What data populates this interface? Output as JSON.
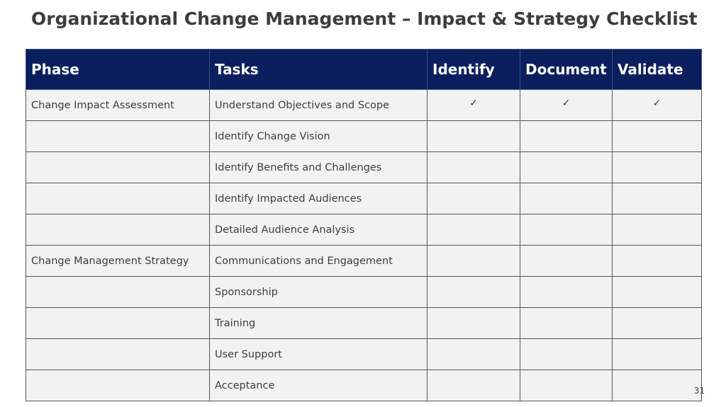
{
  "title": "Organizational Change Management – Impact & Strategy Checklist",
  "table": {
    "headers": {
      "phase": "Phase",
      "tasks": "Tasks",
      "identify": "Identify",
      "document": "Document",
      "validate": "Validate"
    },
    "rows": [
      {
        "phase": "Change Impact Assessment",
        "task": "Understand Objectives and Scope",
        "identify": "✓",
        "document": "✓",
        "validate": "✓"
      },
      {
        "phase": "",
        "task": "Identify Change Vision",
        "identify": "",
        "document": "",
        "validate": ""
      },
      {
        "phase": "",
        "task": "Identify Benefits and Challenges",
        "identify": "",
        "document": "",
        "validate": ""
      },
      {
        "phase": "",
        "task": "Identify Impacted Audiences",
        "identify": "",
        "document": "",
        "validate": ""
      },
      {
        "phase": "",
        "task": "Detailed Audience Analysis",
        "identify": "",
        "document": "",
        "validate": ""
      },
      {
        "phase": "Change Management Strategy",
        "task": "Communications and Engagement",
        "identify": "",
        "document": "",
        "validate": ""
      },
      {
        "phase": "",
        "task": "Sponsorship",
        "identify": "",
        "document": "",
        "validate": ""
      },
      {
        "phase": "",
        "task": "Training",
        "identify": "",
        "document": "",
        "validate": ""
      },
      {
        "phase": "",
        "task": "User Support",
        "identify": "",
        "document": "",
        "validate": ""
      },
      {
        "phase": "",
        "task": "Acceptance",
        "identify": "",
        "document": "",
        "validate": ""
      }
    ]
  },
  "page_number": "31"
}
